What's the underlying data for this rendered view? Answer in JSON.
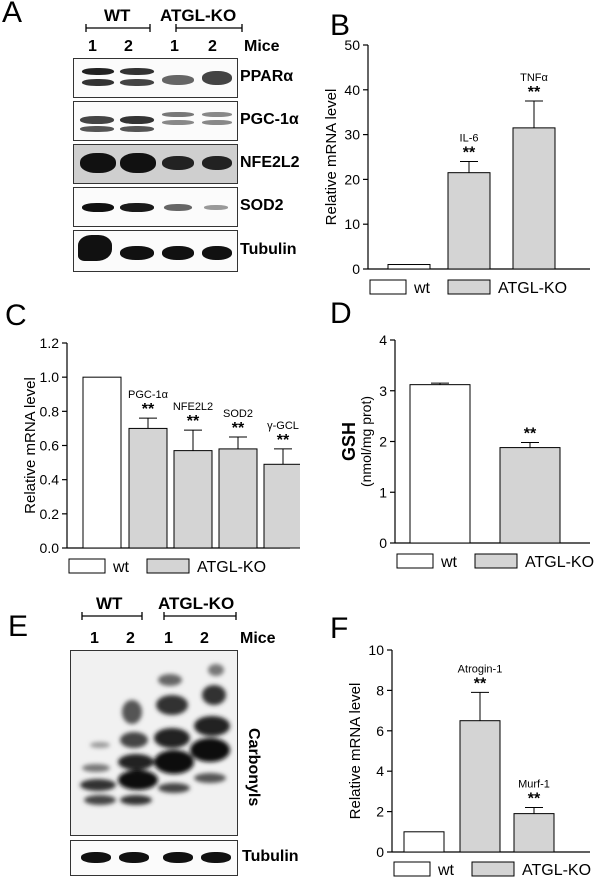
{
  "panels": {
    "A": {
      "letter": "A",
      "group_wt": "WT",
      "group_ko": "ATGL-KO",
      "lanes": [
        "1",
        "2",
        "1",
        "2"
      ],
      "mice_label": "Mice",
      "blots": [
        "PPARα",
        "PGC-1α",
        "NFE2L2",
        "SOD2",
        "Tubulin"
      ]
    },
    "E": {
      "letter": "E",
      "group_wt": "WT",
      "group_ko": "ATGL-KO",
      "lanes": [
        "1",
        "2",
        "1",
        "2"
      ],
      "mice_label": "Mice",
      "blot_label": "Carbonyls",
      "loading_label": "Tubulin"
    }
  },
  "legend": {
    "wt": "wt",
    "ko": "ATGL-KO"
  },
  "colors": {
    "wt": "#ffffff",
    "ko": "#d4d4d4",
    "axis": "#000000"
  },
  "chart_data": [
    {
      "panel": "B",
      "letter": "B",
      "type": "bar",
      "categories": [
        "wt",
        "IL-6",
        "TNFα"
      ],
      "values": [
        1,
        21.5,
        31.5
      ],
      "errors": [
        0,
        2.5,
        6
      ],
      "significance": [
        "",
        "**",
        "**"
      ],
      "bar_labels": [
        "",
        "IL-6",
        "TNFα"
      ],
      "ylabel": "Relative mRNA level",
      "ylim": [
        0,
        50
      ],
      "yticks": [
        0,
        10,
        20,
        30,
        40,
        50
      ],
      "bar_groups": [
        "wt",
        "ko",
        "ko"
      ]
    },
    {
      "panel": "C",
      "letter": "C",
      "type": "bar",
      "categories": [
        "wt",
        "PGC-1α",
        "NFE2L2",
        "SOD2",
        "γ-GCL"
      ],
      "values": [
        1.0,
        0.7,
        0.57,
        0.58,
        0.49
      ],
      "errors": [
        0,
        0.06,
        0.12,
        0.07,
        0.09
      ],
      "significance": [
        "",
        "**",
        "**",
        "**",
        "**"
      ],
      "bar_labels": [
        "",
        "PGC-1α",
        "NFE2L2",
        "SOD2",
        "γ-GCL"
      ],
      "ylabel": "Relative mRNA level",
      "ylim": [
        0,
        1.2
      ],
      "yticks": [
        0.0,
        0.2,
        0.4,
        0.6,
        0.8,
        1.0,
        1.2
      ],
      "bar_groups": [
        "wt",
        "ko",
        "ko",
        "ko",
        "ko"
      ]
    },
    {
      "panel": "D",
      "letter": "D",
      "type": "bar",
      "categories": [
        "wt",
        "ATGL-KO"
      ],
      "values": [
        3.12,
        1.88
      ],
      "errors": [
        0.03,
        0.1
      ],
      "significance": [
        "",
        "**"
      ],
      "bar_labels": [
        "",
        ""
      ],
      "ylabel": "GSH",
      "ylabel2": "(nmol/mg prot)",
      "ylim": [
        0,
        4
      ],
      "yticks": [
        0,
        1,
        2,
        3,
        4
      ],
      "bar_groups": [
        "wt",
        "ko"
      ]
    },
    {
      "panel": "F",
      "letter": "F",
      "type": "bar",
      "categories": [
        "wt",
        "Atrogin-1",
        "Murf-1"
      ],
      "values": [
        1.0,
        6.5,
        1.9
      ],
      "errors": [
        0,
        1.4,
        0.3
      ],
      "significance": [
        "",
        "**",
        "**"
      ],
      "bar_labels": [
        "",
        "Atrogin-1",
        "Murf-1"
      ],
      "ylabel": "Relative mRNA level",
      "ylim": [
        0,
        10
      ],
      "yticks": [
        0,
        2,
        4,
        6,
        8,
        10
      ],
      "bar_groups": [
        "wt",
        "ko",
        "ko"
      ]
    }
  ]
}
